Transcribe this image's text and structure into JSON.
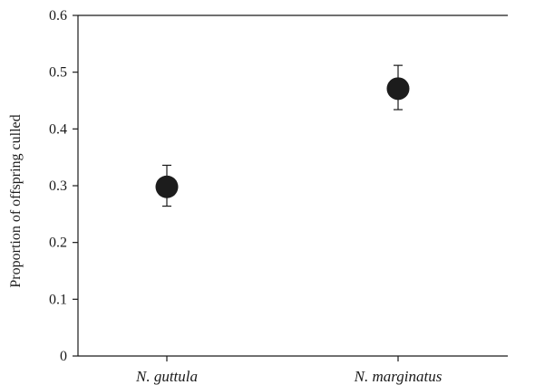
{
  "chart_data": {
    "type": "scatter",
    "categories": [
      "N. guttula",
      "N. marginatus"
    ],
    "values": [
      0.298,
      0.471
    ],
    "error_low": [
      0.264,
      0.434
    ],
    "error_high": [
      0.336,
      0.512
    ],
    "ylabel": "Proportion of offspring culled",
    "xlabel": "",
    "ylim": [
      0,
      0.6
    ],
    "yticks": [
      "0",
      "0.1",
      "0.2",
      "0.3",
      "0.4",
      "0.5",
      "0.6"
    ],
    "grid": false,
    "marker_color": "#1c1c1c",
    "axis_color": "#1a1a1a"
  }
}
